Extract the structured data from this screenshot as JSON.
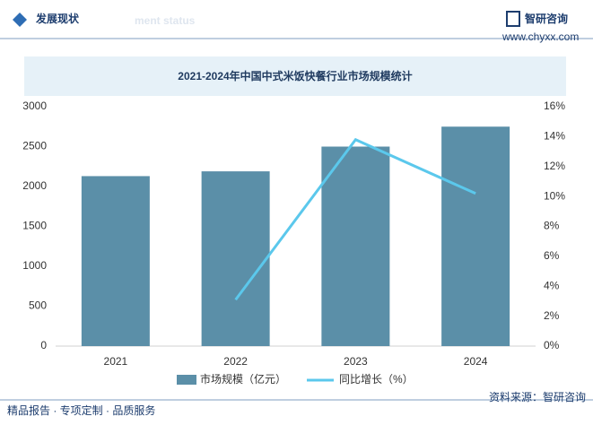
{
  "header": {
    "title": "发展现状",
    "subtitle": "ment status",
    "brand": "智研咨询",
    "website": "www.chyxx.com"
  },
  "chart_data": {
    "type": "bar",
    "title": "2021-2024年中国中式米饭快餐行业市场规模统计",
    "categories": [
      "2021",
      "2022",
      "2023",
      "2024"
    ],
    "series": [
      {
        "name": "市场规模（亿元）",
        "color": "#5b8fa8",
        "type": "bar",
        "values": [
          2130,
          2190,
          2500,
          2750
        ]
      },
      {
        "name": "同比增长（%）",
        "color": "#5bc8ec",
        "type": "line",
        "axis": "y2",
        "values": [
          null,
          3.1,
          13.8,
          10.2
        ]
      }
    ],
    "ylim": [
      0,
      3000
    ],
    "yticks": [
      0,
      500,
      1000,
      1500,
      2000,
      2500,
      3000
    ],
    "y2lim": [
      0,
      16
    ],
    "y2ticks": [
      {
        "value": 0,
        "label": "0%"
      },
      {
        "value": 2,
        "label": "2%"
      },
      {
        "value": 4,
        "label": "4%"
      },
      {
        "value": 6,
        "label": "6%"
      },
      {
        "value": 8,
        "label": "8%"
      },
      {
        "value": 10,
        "label": "10%"
      },
      {
        "value": 12,
        "label": "12%"
      },
      {
        "value": 14,
        "label": "14%"
      },
      {
        "value": 16,
        "label": "16%"
      }
    ],
    "grid": false
  },
  "footer": {
    "left": "精品报告 · 专项定制 · 品质服务",
    "source": "资料来源：智研咨询"
  }
}
